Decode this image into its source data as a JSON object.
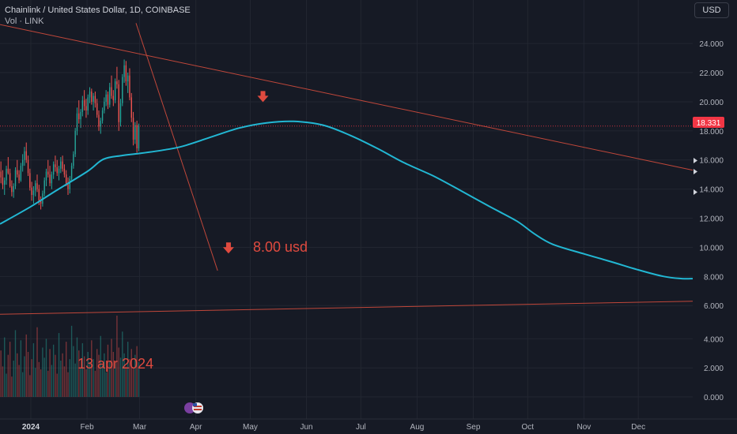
{
  "header": {
    "symbol_title": "Chainlink / United States Dollar, 1D, COINBASE",
    "volume_label": "Vol · LINK",
    "currency_button": "USD"
  },
  "colors": {
    "background": "#161a25",
    "grid": "#222631",
    "candle_up": "#26a69a",
    "candle_down": "#ef5350",
    "ma_line": "#22b7d3",
    "trendline": "#c0473a",
    "annotation": "#e04a3f",
    "price_tag": "#f23645"
  },
  "annotations": {
    "target_price": "8.00 usd",
    "target_date": "13 apr 2024"
  },
  "chart_data": {
    "type": "candlestick",
    "title": "Chainlink / United States Dollar, 1D, COINBASE",
    "ylim": [
      5.2,
      25.2
    ],
    "y_ticks": [
      "24.000",
      "22.000",
      "20.000",
      "18.000",
      "16.000",
      "14.000",
      "12.000",
      "10.000",
      "8.000",
      "6.000"
    ],
    "last_price": "18.331",
    "last_price_value": 18.331,
    "volume_axis": {
      "ylim": [
        -0.6,
        5.6
      ],
      "ticks": [
        "4.000",
        "2.000",
        "0.000"
      ]
    },
    "x_ticks": [
      "2024",
      "Feb",
      "Mar",
      "Apr",
      "May",
      "Jun",
      "Jul",
      "Aug",
      "Sep",
      "Oct",
      "Nov",
      "Dec"
    ],
    "date_range": [
      "2023-12-15",
      "2024-12-31"
    ],
    "candles_daily_ohlc_from_2023-12-15": [
      [
        15.2,
        15.9,
        14.4,
        14.8
      ],
      [
        14.8,
        15.3,
        14.0,
        14.3
      ],
      [
        14.3,
        14.8,
        13.6,
        14.6
      ],
      [
        14.6,
        15.6,
        14.3,
        15.4
      ],
      [
        15.4,
        16.2,
        15.0,
        15.1
      ],
      [
        15.1,
        15.4,
        14.1,
        14.2
      ],
      [
        14.2,
        14.6,
        13.5,
        13.8
      ],
      [
        13.8,
        14.4,
        13.4,
        14.2
      ],
      [
        14.2,
        15.5,
        14.0,
        15.3
      ],
      [
        15.3,
        16.0,
        14.8,
        15.0
      ],
      [
        15.0,
        15.3,
        14.4,
        14.6
      ],
      [
        14.6,
        15.8,
        14.5,
        15.6
      ],
      [
        15.6,
        16.4,
        15.2,
        16.0
      ],
      [
        16.0,
        16.9,
        15.6,
        16.6
      ],
      [
        16.6,
        17.2,
        15.8,
        16.0
      ],
      [
        16.0,
        16.3,
        14.9,
        15.1
      ],
      [
        15.1,
        15.4,
        13.9,
        14.1
      ],
      [
        14.1,
        14.5,
        13.2,
        13.6
      ],
      [
        13.6,
        14.2,
        13.0,
        13.9
      ],
      [
        13.9,
        14.6,
        13.5,
        14.4
      ],
      [
        14.4,
        15.0,
        13.8,
        14.0
      ],
      [
        14.0,
        14.3,
        12.9,
        13.2
      ],
      [
        13.2,
        13.5,
        12.6,
        13.0
      ],
      [
        13.0,
        13.9,
        12.8,
        13.7
      ],
      [
        13.7,
        14.8,
        13.5,
        14.6
      ],
      [
        14.6,
        15.4,
        14.2,
        15.2
      ],
      [
        15.2,
        16.0,
        14.8,
        15.0
      ],
      [
        15.0,
        15.6,
        14.2,
        14.4
      ],
      [
        14.4,
        15.2,
        14.0,
        15.0
      ],
      [
        15.0,
        15.9,
        14.7,
        15.7
      ],
      [
        15.7,
        16.3,
        15.2,
        15.5
      ],
      [
        15.5,
        16.0,
        14.9,
        15.1
      ],
      [
        15.1,
        15.6,
        14.6,
        15.4
      ],
      [
        15.4,
        16.2,
        15.1,
        15.9
      ],
      [
        15.9,
        16.3,
        15.2,
        15.4
      ],
      [
        15.4,
        15.7,
        14.8,
        15.0
      ],
      [
        15.0,
        15.3,
        14.2,
        14.4
      ],
      [
        14.4,
        14.8,
        13.6,
        14.0
      ],
      [
        14.0,
        14.9,
        13.7,
        14.7
      ],
      [
        14.7,
        15.8,
        14.5,
        15.6
      ],
      [
        15.6,
        16.6,
        15.4,
        16.4
      ],
      [
        16.4,
        18.2,
        16.2,
        18.0
      ],
      [
        18.0,
        19.6,
        17.7,
        19.2
      ],
      [
        19.2,
        20.1,
        18.5,
        18.8
      ],
      [
        18.8,
        19.5,
        18.2,
        19.3
      ],
      [
        19.3,
        20.4,
        19.0,
        20.1
      ],
      [
        20.1,
        20.8,
        19.4,
        19.7
      ],
      [
        19.7,
        20.2,
        18.9,
        19.4
      ],
      [
        19.4,
        20.5,
        19.1,
        20.3
      ],
      [
        20.3,
        21.0,
        19.9,
        20.7
      ],
      [
        20.7,
        20.9,
        19.8,
        20.0
      ],
      [
        20.0,
        20.6,
        19.4,
        20.4
      ],
      [
        20.4,
        20.7,
        19.6,
        19.9
      ],
      [
        19.9,
        20.2,
        18.9,
        19.1
      ],
      [
        19.1,
        19.4,
        18.0,
        18.3
      ],
      [
        18.3,
        18.9,
        17.8,
        18.7
      ],
      [
        18.7,
        19.6,
        18.5,
        19.4
      ],
      [
        19.4,
        20.3,
        19.2,
        20.0
      ],
      [
        20.0,
        20.8,
        19.7,
        20.5
      ],
      [
        20.5,
        20.7,
        19.5,
        19.8
      ],
      [
        19.8,
        21.3,
        19.6,
        21.0
      ],
      [
        21.0,
        21.8,
        20.2,
        20.4
      ],
      [
        20.4,
        20.8,
        19.7,
        20.1
      ],
      [
        20.1,
        21.6,
        19.9,
        21.4
      ],
      [
        21.4,
        22.4,
        20.9,
        21.2
      ],
      [
        21.2,
        21.5,
        18.0,
        18.6
      ],
      [
        18.6,
        20.2,
        18.3,
        19.9
      ],
      [
        19.9,
        21.9,
        19.7,
        21.7
      ],
      [
        21.7,
        22.9,
        21.3,
        22.5
      ],
      [
        22.5,
        22.8,
        21.1,
        21.4
      ],
      [
        21.4,
        22.0,
        20.6,
        21.8
      ],
      [
        21.8,
        22.3,
        20.1,
        20.3
      ],
      [
        20.3,
        20.6,
        18.6,
        18.9
      ],
      [
        18.9,
        19.3,
        17.0,
        17.4
      ],
      [
        17.4,
        18.6,
        17.1,
        18.4
      ],
      [
        18.4,
        18.7,
        16.5,
        16.8
      ],
      [
        16.8,
        18.5,
        16.6,
        18.3
      ]
    ],
    "series": [
      {
        "type": "line",
        "points": [
          [
            "2023-12-15",
            11.6
          ],
          [
            "2024-01-01",
            12.8
          ],
          [
            "2024-01-15",
            13.9
          ],
          [
            "2024-02-01",
            15.2
          ],
          [
            "2024-02-10",
            16.05
          ],
          [
            "2024-02-20",
            16.3
          ],
          [
            "2024-03-01",
            16.45
          ],
          [
            "2024-03-15",
            16.7
          ],
          [
            "2024-03-25",
            16.95
          ],
          [
            "2024-04-10",
            17.6
          ],
          [
            "2024-04-25",
            18.2
          ],
          [
            "2024-05-10",
            18.55
          ],
          [
            "2024-05-25",
            18.65
          ],
          [
            "2024-06-10",
            18.4
          ],
          [
            "2024-06-25",
            17.7
          ],
          [
            "2024-07-10",
            16.8
          ],
          [
            "2024-07-25",
            15.8
          ],
          [
            "2024-08-10",
            14.9
          ],
          [
            "2024-08-25",
            13.9
          ],
          [
            "2024-09-10",
            12.8
          ],
          [
            "2024-09-25",
            11.8
          ],
          [
            "2024-10-05",
            10.9
          ],
          [
            "2024-10-15",
            10.2
          ],
          [
            "2024-11-01",
            9.55
          ],
          [
            "2024-11-15",
            9.05
          ],
          [
            "2024-12-01",
            8.45
          ],
          [
            "2024-12-15",
            8.0
          ],
          [
            "2024-12-25",
            7.85
          ],
          [
            "2024-12-31",
            7.85
          ]
        ]
      }
    ],
    "trendlines": [
      {
        "points": [
          [
            "2023-12-15",
            25.3
          ],
          [
            "2024-12-31",
            15.3
          ]
        ]
      },
      {
        "points": [
          [
            "2024-02-28",
            25.4
          ],
          [
            "2024-04-13",
            8.4
          ]
        ]
      },
      {
        "points": [
          [
            "2023-12-15",
            5.4
          ],
          [
            "2024-12-31",
            6.3
          ]
        ]
      }
    ],
    "volume_bars": [
      3.2,
      2.1,
      4.1,
      1.6,
      2.9,
      3.8,
      1.4,
      2.5,
      4.6,
      3.0,
      2.2,
      3.9,
      1.7,
      2.8,
      4.3,
      3.1,
      1.5,
      2.6,
      3.7,
      2.0,
      4.8,
      2.4,
      1.9,
      3.4,
      2.7,
      4.0,
      1.8,
      3.3,
      2.2,
      3.6,
      2.9,
      1.6,
      4.4,
      2.5,
      3.0,
      2.1,
      3.8,
      1.7,
      2.6,
      4.9,
      3.5,
      2.3,
      4.1,
      3.2,
      2.0,
      3.7,
      2.8,
      1.9,
      3.1,
      2.4,
      3.9,
      2.6,
      1.8,
      3.3,
      2.9,
      4.2,
      2.2,
      3.0,
      1.7,
      3.6,
      2.5,
      4.0,
      3.1,
      2.3,
      5.6,
      3.4,
      2.7,
      4.5,
      3.0,
      2.1,
      3.8,
      2.6,
      3.3,
      2.0,
      2.9,
      3.5,
      2.4
    ],
    "arrows": [
      [
        "2024-05-08",
        20.3
      ],
      [
        "2024-04-19",
        9.9
      ]
    ]
  }
}
